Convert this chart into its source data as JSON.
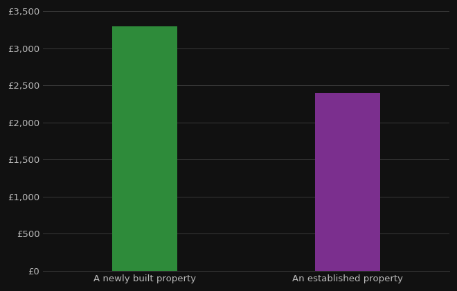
{
  "categories": [
    "A newly built property",
    "An established property"
  ],
  "values": [
    3300,
    2400
  ],
  "bar_colors": [
    "#2e8b3a",
    "#7b2f8e"
  ],
  "background_color": "#111111",
  "text_color": "#bbbbbb",
  "grid_color": "#3a3a3a",
  "ylim": [
    0,
    3500
  ],
  "yticks": [
    0,
    500,
    1000,
    1500,
    2000,
    2500,
    3000,
    3500
  ],
  "bar_width": 0.32,
  "xlabel": "",
  "ylabel": "",
  "figsize": [
    6.6,
    4.2
  ],
  "dpi": 100
}
